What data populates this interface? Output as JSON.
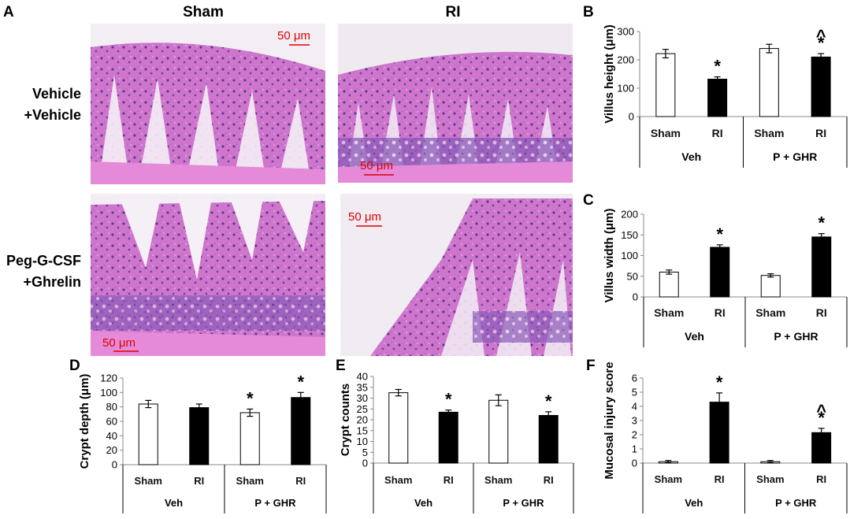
{
  "histology": {
    "panel_letter": "A",
    "column_headers": [
      "Sham",
      "RI"
    ],
    "row_headers": [
      [
        "Vehicle",
        "+Vehicle"
      ],
      [
        "Peg-G-CSF",
        "+Ghrelin"
      ]
    ],
    "scale_bar_label": "50 μm",
    "colors": {
      "eosin": "#d77ad0",
      "hematoxylin": "#6a3f9e",
      "lumen": "#f2eef4"
    }
  },
  "chart_data": [
    {
      "panel": "B",
      "type": "bar",
      "categories": [
        "Sham",
        "RI",
        "Sham",
        "RI"
      ],
      "groups": [
        "Veh",
        "P + GHR"
      ],
      "values": [
        222,
        132,
        240,
        210
      ],
      "errors": [
        15,
        8,
        15,
        12
      ],
      "fills": [
        "#ffffff",
        "#000000",
        "#ffffff",
        "#000000"
      ],
      "ylabel": "Villus height (μm)",
      "ylim": [
        0,
        300
      ],
      "yticks": [
        0,
        100,
        200,
        300
      ],
      "annotations": [
        {
          "bar": 1,
          "lines": [
            "*"
          ]
        },
        {
          "bar": 3,
          "lines": [
            "^",
            "*"
          ]
        }
      ]
    },
    {
      "panel": "C",
      "type": "bar",
      "categories": [
        "Sham",
        "RI",
        "Sham",
        "RI"
      ],
      "groups": [
        "Veh",
        "P + GHR"
      ],
      "values": [
        60,
        120,
        52,
        145
      ],
      "errors": [
        5,
        6,
        4,
        8
      ],
      "fills": [
        "#ffffff",
        "#000000",
        "#ffffff",
        "#000000"
      ],
      "ylabel": "Villus width (μm)",
      "ylim": [
        0,
        200
      ],
      "yticks": [
        0,
        50,
        100,
        150,
        200
      ],
      "annotations": [
        {
          "bar": 1,
          "lines": [
            "*"
          ]
        },
        {
          "bar": 3,
          "lines": [
            "*"
          ]
        }
      ]
    },
    {
      "panel": "D",
      "type": "bar",
      "categories": [
        "Sham",
        "RI",
        "Sham",
        "RI"
      ],
      "groups": [
        "Veh",
        "P + GHR"
      ],
      "values": [
        84,
        79,
        72,
        93
      ],
      "errors": [
        5,
        5,
        5,
        7
      ],
      "fills": [
        "#ffffff",
        "#000000",
        "#ffffff",
        "#000000"
      ],
      "ylabel": "Crypt depth (μm)",
      "ylim": [
        0,
        120
      ],
      "yticks": [
        0,
        20,
        40,
        60,
        80,
        100,
        120
      ],
      "annotations": [
        {
          "bar": 2,
          "lines": [
            "*"
          ]
        },
        {
          "bar": 3,
          "lines": [
            "*"
          ]
        }
      ]
    },
    {
      "panel": "E",
      "type": "bar",
      "categories": [
        "Sham",
        "RI",
        "Sham",
        "RI"
      ],
      "groups": [
        "Veh",
        "P + GHR"
      ],
      "values": [
        32.5,
        23.5,
        29,
        22
      ],
      "errors": [
        1.5,
        1,
        2.5,
        1.7
      ],
      "fills": [
        "#ffffff",
        "#000000",
        "#ffffff",
        "#000000"
      ],
      "ylabel": "Crypt counts",
      "ylim": [
        0,
        40
      ],
      "yticks": [
        0,
        5,
        10,
        15,
        20,
        25,
        30,
        35,
        40
      ],
      "annotations": [
        {
          "bar": 1,
          "lines": [
            "*"
          ]
        },
        {
          "bar": 3,
          "lines": [
            "*"
          ]
        }
      ]
    },
    {
      "panel": "F",
      "type": "bar",
      "categories": [
        "Sham",
        "RI",
        "Sham",
        "RI"
      ],
      "groups": [
        "Veh",
        "P + GHR"
      ],
      "values": [
        0.1,
        4.3,
        0.1,
        2.15
      ],
      "errors": [
        0.08,
        0.65,
        0.08,
        0.3
      ],
      "fills": [
        "#ffffff",
        "#000000",
        "#ffffff",
        "#000000"
      ],
      "ylabel": "Mucosal injury score",
      "ylim": [
        0,
        6
      ],
      "yticks": [
        0,
        1,
        2,
        3,
        4,
        5,
        6
      ],
      "annotations": [
        {
          "bar": 1,
          "lines": [
            "*"
          ]
        },
        {
          "bar": 3,
          "lines": [
            "^",
            "*"
          ]
        }
      ]
    }
  ]
}
